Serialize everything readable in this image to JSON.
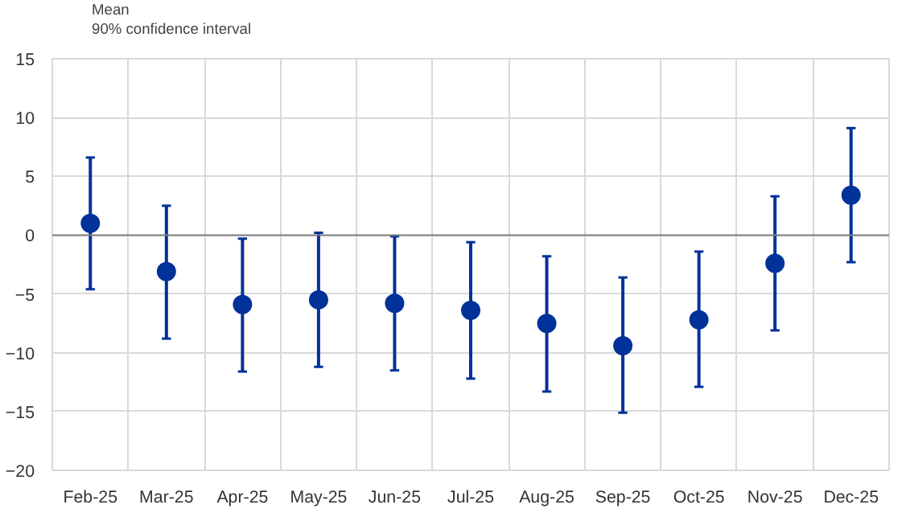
{
  "chart_data": {
    "type": "scatter",
    "categories": [
      "Feb-25",
      "Mar-25",
      "Apr-25",
      "May-25",
      "Jun-25",
      "Jul-25",
      "Aug-25",
      "Sep-25",
      "Oct-25",
      "Nov-25",
      "Dec-25"
    ],
    "series": [
      {
        "name": "Mean",
        "color": "#003299",
        "values": [
          1.0,
          -3.1,
          -5.9,
          -5.5,
          -5.8,
          -6.4,
          -7.5,
          -9.4,
          -7.2,
          -2.4,
          3.4
        ],
        "errors": [
          [
            -4.6,
            6.6
          ],
          [
            -8.8,
            2.5
          ],
          [
            -11.6,
            -0.3
          ],
          [
            -11.2,
            0.2
          ],
          [
            -11.5,
            -0.1
          ],
          [
            -12.2,
            -0.6
          ],
          [
            -13.3,
            -1.8
          ],
          [
            -15.1,
            -3.6
          ],
          [
            -12.9,
            -1.4
          ],
          [
            -8.1,
            3.3
          ],
          [
            -2.3,
            9.1
          ]
        ]
      }
    ],
    "annotations": [
      "90% confidence interval"
    ],
    "ylim": [
      -20,
      15
    ],
    "yticks": [
      -20,
      -15,
      -10,
      -5,
      0,
      5,
      10,
      15
    ],
    "ref_lines": [
      {
        "axis": "y",
        "value": 0,
        "color": "#7f7f7f"
      }
    ],
    "grid": true,
    "legend": "top left",
    "marker": "circle"
  }
}
